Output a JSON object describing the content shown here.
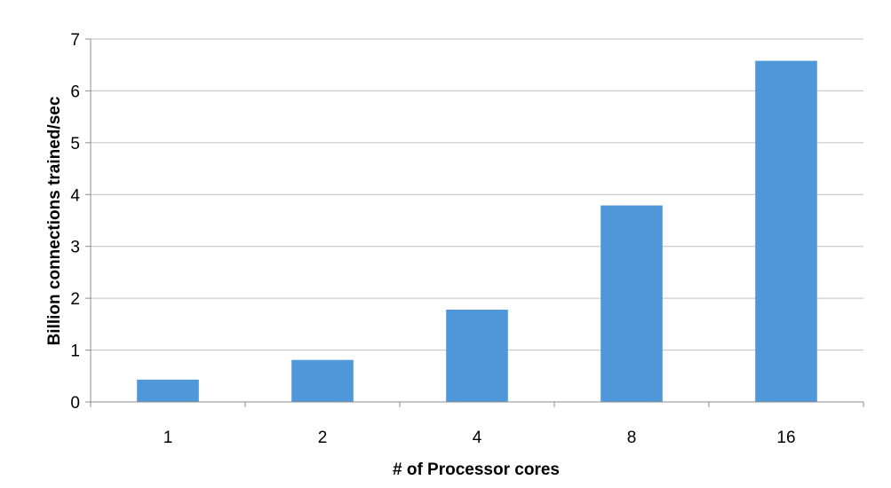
{
  "chart_data": {
    "type": "bar",
    "categories": [
      "1",
      "2",
      "4",
      "8",
      "16"
    ],
    "values": [
      0.43,
      0.81,
      1.78,
      3.79,
      6.58
    ],
    "xlabel": "# of Processor cores",
    "ylabel": "Billion connections trained/sec",
    "ylim": [
      0,
      7
    ],
    "yticks": [
      0,
      1,
      2,
      3,
      4,
      5,
      6,
      7
    ],
    "grid": true,
    "legend": "none",
    "bar_color": "#4e97d8",
    "grid_color": "#bfbfbf",
    "axis_color": "#8c8c8c"
  }
}
